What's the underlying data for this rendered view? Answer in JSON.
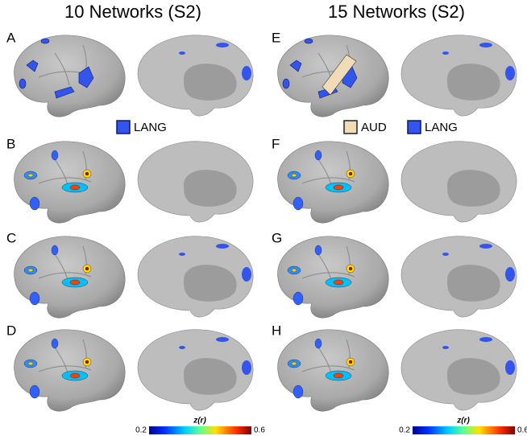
{
  "columns": [
    {
      "title": "10 Networks (S2)"
    },
    {
      "title": "15 Networks (S2)"
    }
  ],
  "panels": [
    {
      "label": "A"
    },
    {
      "label": "B"
    },
    {
      "label": "C"
    },
    {
      "label": "D"
    },
    {
      "label": "E"
    },
    {
      "label": "F"
    },
    {
      "label": "G"
    },
    {
      "label": "H"
    }
  ],
  "legends": {
    "left": [
      {
        "label": "LANG"
      }
    ],
    "right": [
      {
        "label": "AUD"
      },
      {
        "label": "LANG"
      }
    ]
  },
  "colorbars": [
    {
      "title": "z(r)",
      "min": 0.2,
      "max": 0.6
    },
    {
      "title": "z(r)",
      "min": 0.2,
      "max": 0.6
    }
  ]
}
